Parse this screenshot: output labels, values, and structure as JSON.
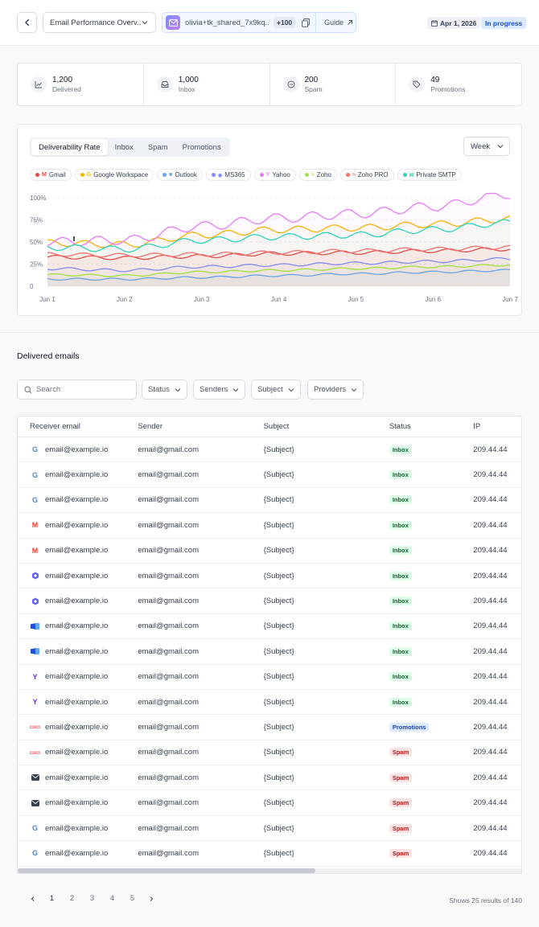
{
  "header": {
    "report_title": "Email Performance Overv...",
    "account_email": "olivia+tk_shared_7x9kq...",
    "account_count": "+100",
    "guide_label": "Guide",
    "date": "Apr 1, 2026",
    "status": "In progress"
  },
  "stats": [
    {
      "icon": "trend-icon",
      "value": "1,200",
      "label": "Delivered"
    },
    {
      "icon": "inbox-icon",
      "value": "1,000",
      "label": "Inbox"
    },
    {
      "icon": "minus-circle-icon",
      "value": "200",
      "label": "Spam"
    },
    {
      "icon": "tag-icon",
      "value": "49",
      "label": "Promotions"
    }
  ],
  "chart_tabs": [
    "Deliverability Rate",
    "Inbox",
    "Spam",
    "Promotions"
  ],
  "period": "Week",
  "chart_data": {
    "type": "line",
    "x": [
      "Jun 1",
      "Jun 2",
      "Jun 3",
      "Jun 4",
      "Jun 5",
      "Jun 6",
      "Jun 7"
    ],
    "y_ticks": [
      "100%",
      "75%",
      "50%",
      "25%",
      "0"
    ],
    "ylim": [
      0,
      100
    ],
    "legend_placement": "top",
    "series": [
      {
        "name": "Gmail",
        "color": "#ef4444",
        "glyph": "M",
        "values": [
          33,
          32,
          34,
          37,
          38,
          40,
          42
        ]
      },
      {
        "name": "Google Workspace",
        "color": "#f5b400",
        "glyph": "G",
        "values": [
          49,
          47,
          58,
          64,
          66,
          70,
          76
        ]
      },
      {
        "name": "Outlook",
        "color": "#60a5fa",
        "glyph": "■",
        "values": [
          8,
          8,
          10,
          12,
          14,
          16,
          18
        ]
      },
      {
        "name": "MS365",
        "color": "#818cf8",
        "glyph": "◆",
        "values": [
          20,
          18,
          22,
          24,
          26,
          28,
          31
        ]
      },
      {
        "name": "Yahoo",
        "color": "#e879f9",
        "glyph": "Y",
        "values": [
          50,
          52,
          68,
          77,
          82,
          90,
          104
        ]
      },
      {
        "name": "Zoho",
        "color": "#a3e635",
        "glyph": "≈",
        "values": [
          13,
          12,
          16,
          18,
          20,
          22,
          24
        ]
      },
      {
        "name": "Zoho PRO",
        "color": "#f87171",
        "glyph": "≈",
        "values": [
          36,
          35,
          36,
          38,
          40,
          42,
          44
        ]
      },
      {
        "name": "Private SMTP",
        "color": "#2dd4bf",
        "glyph": "✉",
        "values": [
          44,
          42,
          52,
          56,
          58,
          64,
          72
        ]
      }
    ]
  },
  "section_title": "Delivered emails",
  "search_placeholder": "Search",
  "filters": [
    "Status",
    "Senders",
    "Subject",
    "Providers"
  ],
  "table": {
    "columns": [
      "Receiver email",
      "Sender",
      "Subject",
      "Status",
      "IP"
    ],
    "rows": [
      {
        "provider": "google",
        "receiver": "email@example.io",
        "sender": "email@gmail.com",
        "subject": "{Subject}",
        "status": "Inbox",
        "ip": "209.44.44"
      },
      {
        "provider": "google",
        "receiver": "email@example.io",
        "sender": "email@gmail.com",
        "subject": "{Subject}",
        "status": "Inbox",
        "ip": "209.44.44"
      },
      {
        "provider": "google",
        "receiver": "email@example.io",
        "sender": "email@gmail.com",
        "subject": "{Subject}",
        "status": "Inbox",
        "ip": "209.44.44"
      },
      {
        "provider": "gmail",
        "receiver": "email@example.io",
        "sender": "email@gmail.com",
        "subject": "{Subject}",
        "status": "Inbox",
        "ip": "209.44.44"
      },
      {
        "provider": "gmail",
        "receiver": "email@example.io",
        "sender": "email@gmail.com",
        "subject": "{Subject}",
        "status": "Inbox",
        "ip": "209.44.44"
      },
      {
        "provider": "ms365",
        "receiver": "email@example.io",
        "sender": "email@gmail.com",
        "subject": "{Subject}",
        "status": "Inbox",
        "ip": "209.44.44"
      },
      {
        "provider": "ms365",
        "receiver": "email@example.io",
        "sender": "email@gmail.com",
        "subject": "{Subject}",
        "status": "Inbox",
        "ip": "209.44.44"
      },
      {
        "provider": "outlook",
        "receiver": "email@example.io",
        "sender": "email@gmail.com",
        "subject": "{Subject}",
        "status": "Inbox",
        "ip": "209.44.44"
      },
      {
        "provider": "outlook",
        "receiver": "email@example.io",
        "sender": "email@gmail.com",
        "subject": "{Subject}",
        "status": "Inbox",
        "ip": "209.44.44"
      },
      {
        "provider": "yahoo",
        "receiver": "email@example.io",
        "sender": "email@gmail.com",
        "subject": "{Subject}",
        "status": "Inbox",
        "ip": "209.44.44"
      },
      {
        "provider": "yahoo",
        "receiver": "email@example.io",
        "sender": "email@gmail.com",
        "subject": "{Subject}",
        "status": "Inbox",
        "ip": "209.44.44"
      },
      {
        "provider": "zoho",
        "receiver": "email@example.io",
        "sender": "email@gmail.com",
        "subject": "{Subject}",
        "status": "Promotions",
        "ip": "209.44.44"
      },
      {
        "provider": "zoho",
        "receiver": "email@example.io",
        "sender": "email@gmail.com",
        "subject": "{Subject}",
        "status": "Spam",
        "ip": "209.44.44"
      },
      {
        "provider": "smtp",
        "receiver": "email@example.io",
        "sender": "email@gmail.com",
        "subject": "{Subject}",
        "status": "Spam",
        "ip": "209.44.44"
      },
      {
        "provider": "smtp",
        "receiver": "email@example.io",
        "sender": "email@gmail.com",
        "subject": "{Subject}",
        "status": "Spam",
        "ip": "209.44.44"
      },
      {
        "provider": "google",
        "receiver": "email@example.io",
        "sender": "email@gmail.com",
        "subject": "{Subject}",
        "status": "Spam",
        "ip": "209.44.44"
      },
      {
        "provider": "google",
        "receiver": "email@example.io",
        "sender": "email@gmail.com",
        "subject": "{Subject}",
        "status": "Spam",
        "ip": "209.44.44"
      }
    ]
  },
  "pagination": {
    "pages": [
      "1",
      "2",
      "3",
      "4",
      "5"
    ],
    "current": "1",
    "results_text": "Shows 25 results of 140"
  }
}
